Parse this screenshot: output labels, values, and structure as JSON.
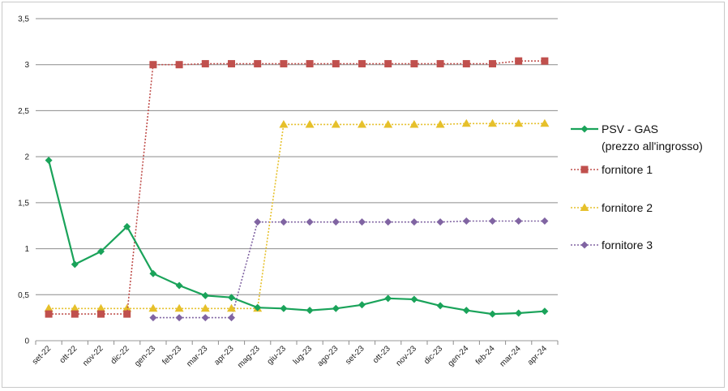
{
  "chart_data": {
    "type": "line",
    "title": "",
    "xlabel": "",
    "ylabel": "",
    "ylim": [
      0,
      3.5
    ],
    "yticks": [
      "0",
      "0,5",
      "1",
      "1,5",
      "2",
      "2,5",
      "3",
      "3,5"
    ],
    "grid": true,
    "legend_position": "right",
    "categories": [
      "set-22",
      "ott-22",
      "nov-22",
      "dic-22",
      "gen-23",
      "feb-23",
      "mar-23",
      "apr-23",
      "mag-23",
      "giu-23",
      "lug-23",
      "ago-23",
      "set-23",
      "ott-23",
      "nov-23",
      "dic-23",
      "gen-24",
      "feb-24",
      "mar-24",
      "apr-24"
    ],
    "series": [
      {
        "name_lines": [
          "PSV - GAS",
          "(prezzo all'ingrosso)"
        ],
        "color": "#1aa35a",
        "line": "solid",
        "marker": "diamond",
        "values": [
          1.96,
          0.83,
          0.97,
          1.24,
          0.73,
          0.6,
          0.49,
          0.47,
          0.36,
          0.35,
          0.33,
          0.35,
          0.39,
          0.46,
          0.45,
          0.38,
          0.33,
          0.29,
          0.3,
          0.32
        ]
      },
      {
        "name_lines": [
          "fornitore 1"
        ],
        "color": "#c0504d",
        "line": "dotted",
        "marker": "square",
        "values": [
          0.29,
          0.29,
          0.29,
          0.29,
          3.0,
          3.0,
          3.01,
          3.01,
          3.01,
          3.01,
          3.01,
          3.01,
          3.01,
          3.01,
          3.01,
          3.01,
          3.01,
          3.01,
          3.04,
          3.04
        ]
      },
      {
        "name_lines": [
          "fornitore 2"
        ],
        "color": "#e6c02a",
        "line": "dotted",
        "marker": "triangle",
        "values": [
          0.35,
          0.35,
          0.35,
          0.35,
          0.35,
          0.35,
          0.35,
          0.35,
          0.35,
          2.35,
          2.35,
          2.35,
          2.35,
          2.35,
          2.35,
          2.35,
          2.36,
          2.36,
          2.36,
          2.36
        ]
      },
      {
        "name_lines": [
          "fornitore 3"
        ],
        "color": "#8064a2",
        "line": "dotted",
        "marker": "diamond",
        "values": [
          null,
          null,
          null,
          null,
          0.25,
          0.25,
          0.25,
          0.25,
          1.29,
          1.29,
          1.29,
          1.29,
          1.29,
          1.29,
          1.29,
          1.29,
          1.3,
          1.3,
          1.3,
          1.3
        ]
      }
    ]
  }
}
